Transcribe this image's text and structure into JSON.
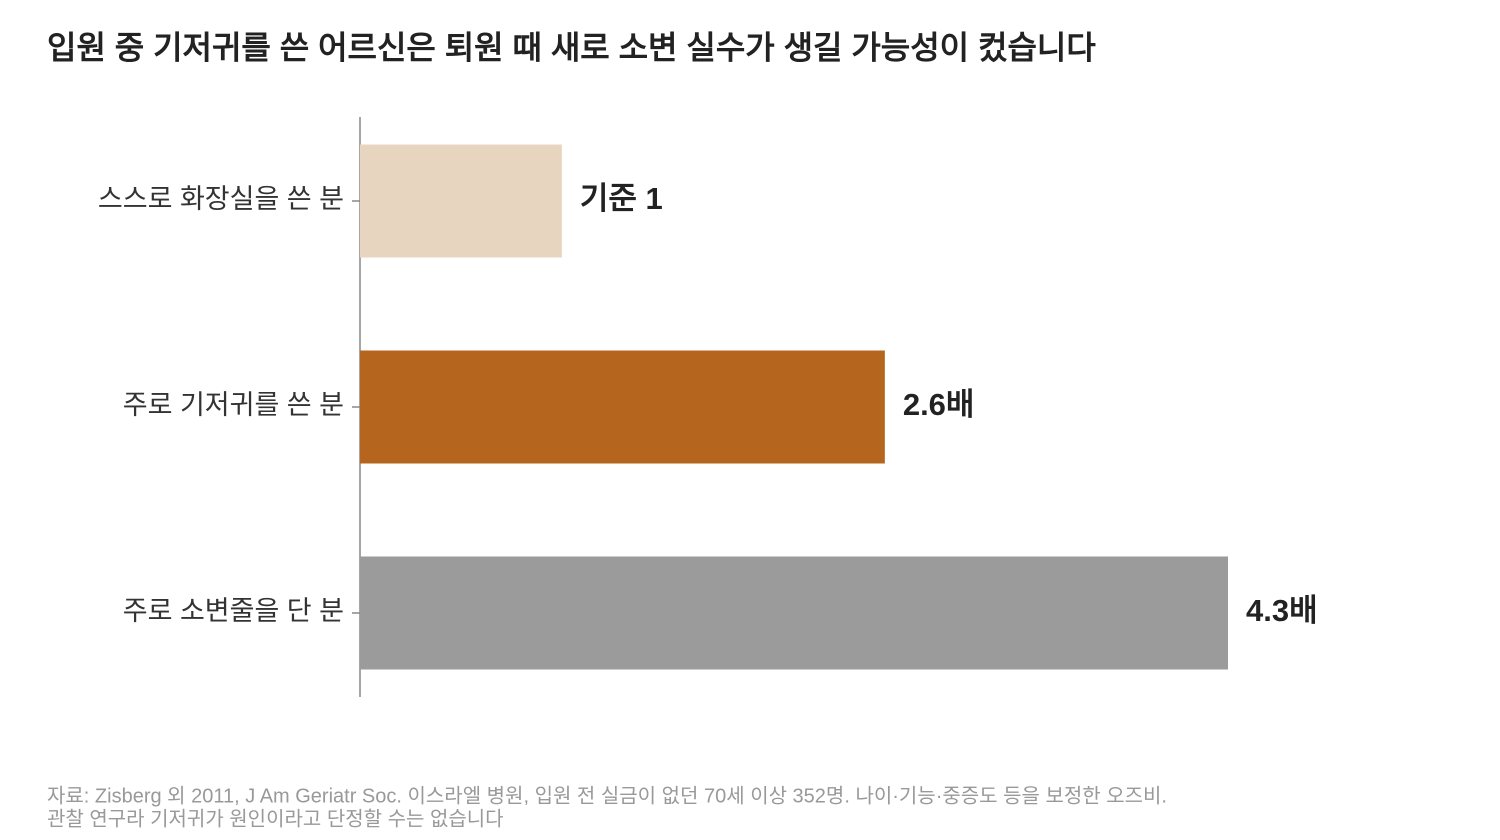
{
  "chart_data": {
    "type": "barh",
    "title": "입원 중 기저귀를 쓴 어르신은 퇴원 때 새로 소변 실수가 생길 가능성이 컸습니다",
    "categories": [
      "스스로 화장실을 쓴 분",
      "주로 기저귀를 쓴 분",
      "주로 소변줄을 단 분"
    ],
    "values": [
      1,
      2.6,
      4.3
    ],
    "value_labels": [
      "기준 1",
      "2.6배",
      "4.3배"
    ],
    "colors": [
      "#e8d5c0",
      "#b5651d",
      "#9b9b9b"
    ],
    "source": [
      "자료: Zisberg 외 2011, J Am Geriatr Soc. 이스라엘 병원, 입원 전 실금이 없던 70세 이상 352명. 나이·기능·중증도 등을 보정한 오즈비.",
      "관찰 연구라 기저귀가 원인이라고 단정할 수는 없습니다"
    ]
  }
}
